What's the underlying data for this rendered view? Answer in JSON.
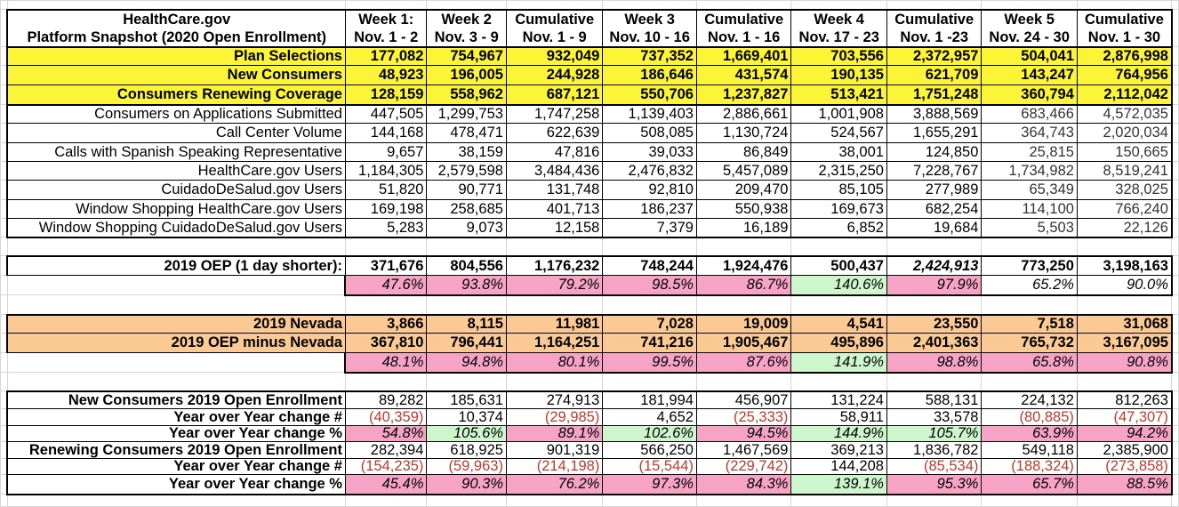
{
  "columns": [
    {
      "line1": "HealthCare.gov",
      "line2": "Platform Snapshot (2020 Open Enrollment)"
    },
    {
      "line1": "Week 1:",
      "line2": "Nov. 1 - 2"
    },
    {
      "line1": "Week 2",
      "line2": "Nov. 3 - 9"
    },
    {
      "line1": "Cumulative",
      "line2": "Nov. 1 - 9"
    },
    {
      "line1": "Week 3",
      "line2": "Nov. 10 - 16"
    },
    {
      "line1": "Cumulative",
      "line2": "Nov. 1 - 16"
    },
    {
      "line1": "Week 4",
      "line2": "Nov. 17 - 23"
    },
    {
      "line1": "Cumulative",
      "line2": "Nov. 1 -23"
    },
    {
      "line1": "Week 5",
      "line2": "Nov. 24 - 30"
    },
    {
      "line1": "Cumulative",
      "line2": "Nov. 1 - 30"
    }
  ],
  "colors": {
    "yellow": "#fcf436",
    "orange": "#fbc993",
    "pink": "#f6a3c6",
    "green": "#cdf6cc",
    "negative_text": "#c0392b"
  },
  "rows": [
    {
      "kind": "yellow",
      "label": "Plan Selections",
      "values": [
        "177,082",
        "754,967",
        "932,049",
        "737,352",
        "1,669,401",
        "703,556",
        "2,372,957",
        "504,041",
        "2,876,998"
      ]
    },
    {
      "kind": "yellow",
      "label": "New Consumers",
      "values": [
        "48,923",
        "196,005",
        "244,928",
        "186,646",
        "431,574",
        "190,135",
        "621,709",
        "143,247",
        "764,956"
      ]
    },
    {
      "kind": "yellow",
      "label": "Consumers Renewing Coverage",
      "values": [
        "128,159",
        "558,962",
        "687,121",
        "550,706",
        "1,237,827",
        "513,421",
        "1,751,248",
        "360,794",
        "2,112,042"
      ]
    },
    {
      "kind": "plain",
      "label": "Consumers on Applications Submitted",
      "values": [
        "447,505",
        "1,299,753",
        "1,747,258",
        "1,139,403",
        "2,886,661",
        "1,001,908",
        "3,888,569",
        "683,466",
        "4,572,035"
      ]
    },
    {
      "kind": "plain",
      "label": "Call Center Volume",
      "values": [
        "144,168",
        "478,471",
        "622,639",
        "508,085",
        "1,130,724",
        "524,567",
        "1,655,291",
        "364,743",
        "2,020,034"
      ]
    },
    {
      "kind": "plain",
      "label": "Calls with Spanish Speaking Representative",
      "values": [
        "9,657",
        "38,159",
        "47,816",
        "39,033",
        "86,849",
        "38,001",
        "124,850",
        "25,815",
        "150,665"
      ]
    },
    {
      "kind": "plain",
      "label": "HealthCare.gov Users",
      "values": [
        "1,184,305",
        "2,579,598",
        "3,484,436",
        "2,476,832",
        "5,457,089",
        "2,315,250",
        "7,228,767",
        "1,734,982",
        "8,519,241"
      ]
    },
    {
      "kind": "plain",
      "label": "CuidadoDeSalud.gov Users",
      "values": [
        "51,820",
        "90,771",
        "131,748",
        "92,810",
        "209,470",
        "85,105",
        "277,989",
        "65,349",
        "328,025"
      ]
    },
    {
      "kind": "plain",
      "label": "Window Shopping HealthCare.gov Users",
      "values": [
        "169,198",
        "258,685",
        "401,713",
        "186,237",
        "550,938",
        "169,673",
        "682,254",
        "114,100",
        "766,240"
      ]
    },
    {
      "kind": "plain",
      "label": "Window Shopping CuidadoDeSalud.gov Users",
      "values": [
        "5,283",
        "9,073",
        "12,158",
        "7,379",
        "16,189",
        "6,852",
        "19,684",
        "5,503",
        "22,126"
      ]
    },
    {
      "kind": "blank"
    },
    {
      "kind": "oep",
      "label": "2019 OEP (1 day shorter):",
      "values": [
        "371,676",
        "804,556",
        "1,176,232",
        "748,244",
        "1,924,476",
        "500,437",
        "2,424,913",
        "773,250",
        "3,198,163"
      ]
    },
    {
      "kind": "pct",
      "values": [
        "47.6%",
        "93.8%",
        "79.2%",
        "98.5%",
        "86.7%",
        "140.6%",
        "97.9%",
        "65.2%",
        "90.0%"
      ],
      "fills": [
        "pink",
        "pink",
        "pink",
        "pink",
        "pink",
        "green",
        "pink",
        "none",
        "none"
      ]
    },
    {
      "kind": "blank"
    },
    {
      "kind": "orange",
      "label": "2019 Nevada",
      "values": [
        "3,866",
        "8,115",
        "11,981",
        "7,028",
        "19,009",
        "4,541",
        "23,550",
        "7,518",
        "31,068"
      ]
    },
    {
      "kind": "orange",
      "label": "2019 OEP minus Nevada",
      "values": [
        "367,810",
        "796,441",
        "1,164,251",
        "741,216",
        "1,905,467",
        "495,896",
        "2,401,363",
        "765,732",
        "3,167,095"
      ]
    },
    {
      "kind": "pct",
      "values": [
        "48.1%",
        "94.8%",
        "80.1%",
        "99.5%",
        "87.6%",
        "141.9%",
        "98.8%",
        "65.8%",
        "90.8%"
      ],
      "fills": [
        "pink",
        "pink",
        "pink",
        "pink",
        "pink",
        "green",
        "pink",
        "pink",
        "pink"
      ]
    },
    {
      "kind": "blank"
    },
    {
      "kind": "yoy",
      "label": "New Consumers 2019 Open Enrollment",
      "values": [
        "89,282",
        "185,631",
        "274,913",
        "181,994",
        "456,907",
        "131,224",
        "588,131",
        "224,132",
        "812,263"
      ]
    },
    {
      "kind": "yoy",
      "label": "Year over Year change #",
      "values": [
        "(40,359)",
        "10,374",
        "(29,985)",
        "4,652",
        "(25,333)",
        "58,911",
        "33,578",
        "(80,885)",
        "(47,307)"
      ]
    },
    {
      "kind": "yoypct",
      "label": "Year over Year change %",
      "values": [
        "54.8%",
        "105.6%",
        "89.1%",
        "102.6%",
        "94.5%",
        "144.9%",
        "105.7%",
        "63.9%",
        "94.2%"
      ],
      "fills": [
        "pink",
        "green",
        "pink",
        "green",
        "pink",
        "green",
        "green",
        "pink",
        "pink"
      ]
    },
    {
      "kind": "yoy",
      "label": "Renewing Consumers 2019 Open Enrollment",
      "values": [
        "282,394",
        "618,925",
        "901,319",
        "566,250",
        "1,467,569",
        "369,213",
        "1,836,782",
        "549,118",
        "2,385,900"
      ]
    },
    {
      "kind": "yoy",
      "label": "Year over Year change #",
      "values": [
        "(154,235)",
        "(59,963)",
        "(214,198)",
        "(15,544)",
        "(229,742)",
        "144,208",
        "(85,534)",
        "(188,324)",
        "(273,858)"
      ]
    },
    {
      "kind": "yoypct",
      "label": "Year over Year change %",
      "values": [
        "45.4%",
        "90.3%",
        "76.2%",
        "97.3%",
        "84.3%",
        "139.1%",
        "95.3%",
        "65.7%",
        "88.5%"
      ],
      "fills": [
        "pink",
        "pink",
        "pink",
        "pink",
        "pink",
        "green",
        "pink",
        "pink",
        "pink"
      ]
    }
  ]
}
